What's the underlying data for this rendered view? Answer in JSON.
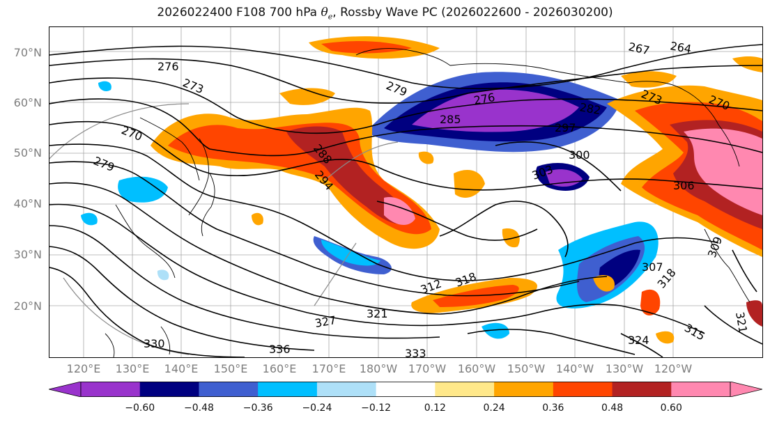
{
  "title": {
    "prefix": "2026022400 F108 700 hPa ",
    "symbol": "θ",
    "subscript": "e",
    "suffix": ", Rossby Wave PC (2026022600 - 2026030200)"
  },
  "map": {
    "projection": "cylindrical lat-lon",
    "lat_labels": [
      "70°N",
      "60°N",
      "50°N",
      "40°N",
      "30°N",
      "20°N"
    ],
    "lon_labels": [
      "120°E",
      "130°E",
      "140°E",
      "150°E",
      "160°E",
      "170°E",
      "180°W",
      "170°W",
      "160°W",
      "150°W",
      "140°W",
      "130°W",
      "120°W"
    ],
    "grid": true,
    "contour_field": "700 hPa theta-e",
    "contour_labels": [
      "267",
      "264",
      "276",
      "273",
      "279",
      "270",
      "279",
      "276",
      "285",
      "282",
      "273",
      "270",
      "288",
      "294",
      "297",
      "300",
      "303",
      "306",
      "307",
      "309",
      "312",
      "318",
      "318",
      "321",
      "327",
      "330",
      "336",
      "333",
      "315",
      "324",
      "321"
    ],
    "shaded_field": "Rossby Wave PC"
  },
  "colorbar": {
    "ticks": [
      "−0.60",
      "−0.48",
      "−0.36",
      "−0.24",
      "−0.12",
      "0.12",
      "0.24",
      "0.36",
      "0.48",
      "0.60"
    ],
    "colors": [
      "#9933cc",
      "#000080",
      "#3f5fd0",
      "#00bfff",
      "#aee0f8",
      "#ffffff",
      "#ffe88a",
      "#ffa500",
      "#ff4500",
      "#b22222",
      "#ff88b0"
    ],
    "extend": "both"
  },
  "colors": {
    "contour": "#000000",
    "axis_label": "#7d7d7d",
    "grid": "#999999"
  }
}
